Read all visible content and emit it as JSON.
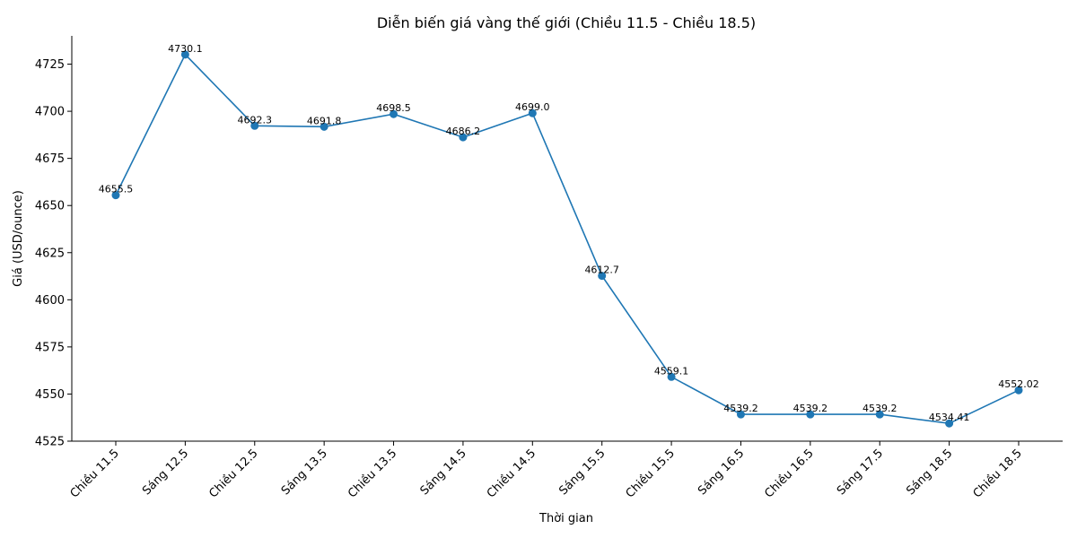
{
  "chart_data": {
    "type": "line",
    "title": "Diễn biến giá vàng thế giới (Chiều 11.5 - Chiều 18.5)",
    "xlabel": "Thời gian",
    "ylabel": "Giá (USD/ounce)",
    "categories": [
      "Chiều 11.5",
      "Sáng 12.5",
      "Chiều 12.5",
      "Sáng 13.5",
      "Chiều 13.5",
      "Sáng 14.5",
      "Chiều 14.5",
      "Sáng 15.5",
      "Chiều 15.5",
      "Sáng 16.5",
      "Chiều 16.5",
      "Sáng 17.5",
      "Sáng 18.5",
      "Chiều 18.5"
    ],
    "series": [
      {
        "values": [
          4655.5,
          4730.1,
          4692.3,
          4691.8,
          4698.5,
          4686.2,
          4699.0,
          4612.7,
          4559.1,
          4539.2,
          4539.2,
          4539.2,
          4534.41,
          4552.02
        ],
        "labels": [
          "4655.5",
          "4730.1",
          "4692.3",
          "4691.8",
          "4698.5",
          "4686.2",
          "4699.0",
          "4612.7",
          "4559.1",
          "4539.2",
          "4539.2",
          "4539.2",
          "4534.41",
          "4552.02"
        ],
        "color": "#1f77b4"
      }
    ],
    "ylim": [
      4525,
      4740
    ],
    "yticks": [
      4525,
      4550,
      4575,
      4600,
      4625,
      4650,
      4675,
      4700,
      4725
    ],
    "grid": false,
    "legend": "none"
  }
}
